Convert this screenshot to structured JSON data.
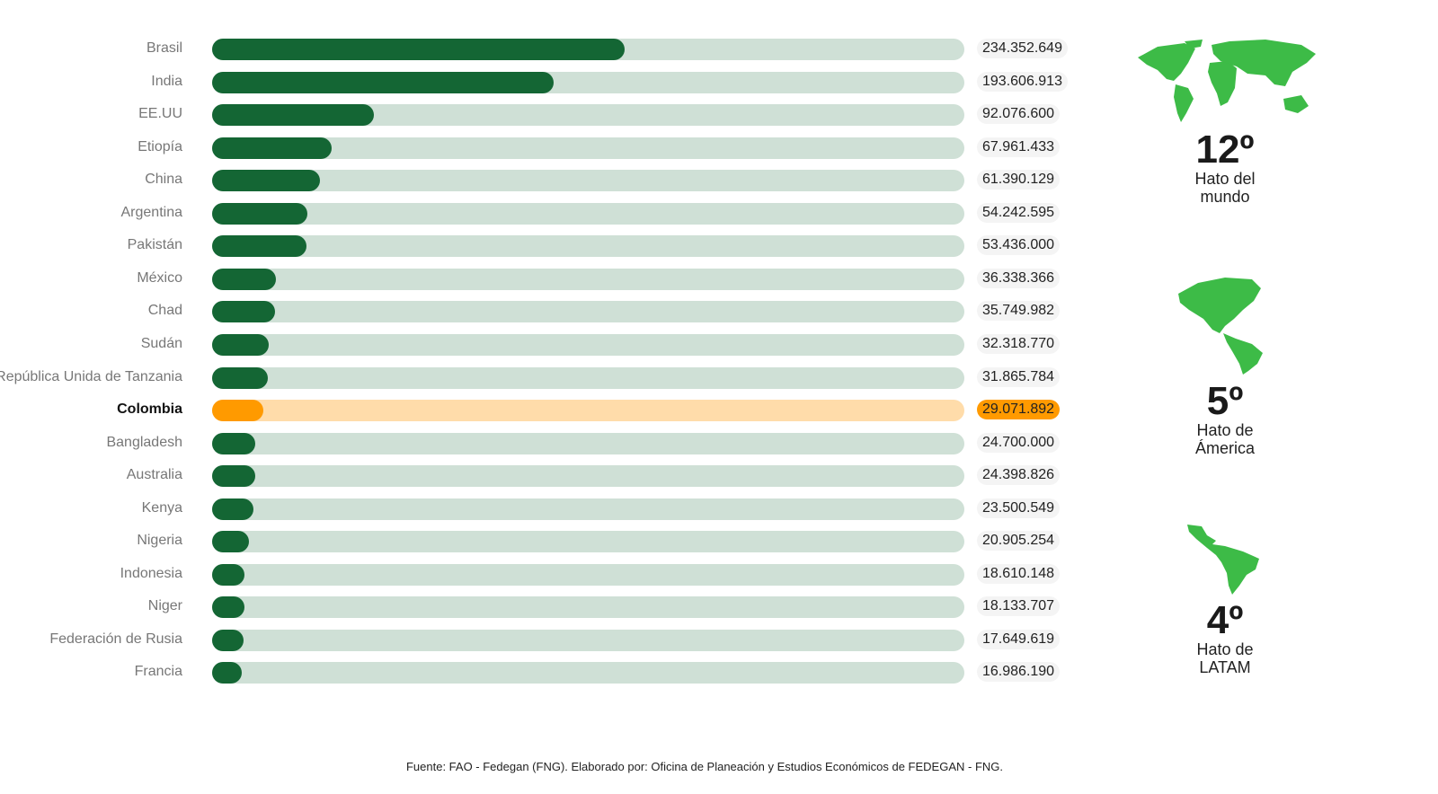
{
  "chart_data": {
    "type": "bar",
    "orientation": "horizontal",
    "categories": [
      "Brasil",
      "India",
      "EE.UU",
      "Etiopía",
      "China",
      "Argentina",
      "Pakistán",
      "México",
      "Chad",
      "Sudán",
      "República Unida de Tanzania",
      "Colombia",
      "Bangladesh",
      "Australia",
      "Kenya",
      "Nigeria",
      "Indonesia",
      "Niger",
      "Federación de Rusia",
      "Francia"
    ],
    "values": [
      234352649,
      193606913,
      92076600,
      67961433,
      61390129,
      54242595,
      53436000,
      36338366,
      35749982,
      32318770,
      31865784,
      29071892,
      24700000,
      24398826,
      23500549,
      20905254,
      18610148,
      18133707,
      17649619,
      16986190
    ],
    "value_labels": [
      "234.352.649",
      "193.606.913",
      "92.076.600",
      "67.961.433",
      "61.390.129",
      "54.242.595",
      "53.436.000",
      "36.338.366",
      "35.749.982",
      "32.318.770",
      "31.865.784",
      "29.071.892",
      "24.700.000",
      "24.398.826",
      "23.500.549",
      "20.905.254",
      "18.610.148",
      "18.133.707",
      "17.649.619",
      "16.986.190"
    ],
    "highlight": "Colombia",
    "xlim": [
      0,
      427000000
    ],
    "colors": {
      "bar": "#146634",
      "track": "#cfe0d6",
      "highlight_bar": "#ff9a00",
      "highlight_track": "#ffdcaa"
    }
  },
  "side_panels": [
    {
      "rank": "12º",
      "label": "Hato del\nmundo",
      "icon": "world-map-icon"
    },
    {
      "rank": "5º",
      "label": "Hato de\nÁmerica",
      "icon": "americas-map-icon"
    },
    {
      "rank": "4º",
      "label": "Hato de\nLATAM",
      "icon": "latam-map-icon"
    }
  ],
  "map_color": "#3dbb47",
  "source": "Fuente: FAO - Fedegan (FNG). Elaborado por: Oficina de Planeación y Estudios Económicos de FEDEGAN - FNG."
}
